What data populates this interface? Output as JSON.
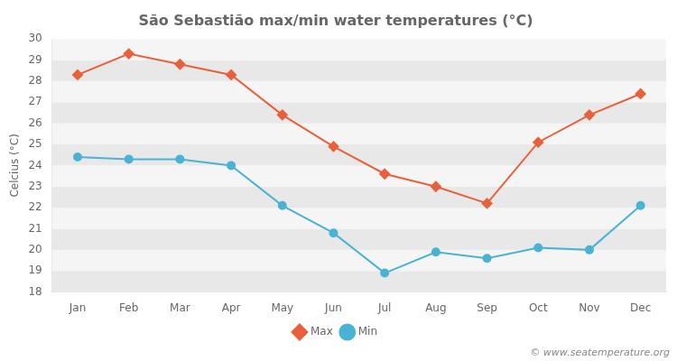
{
  "chart_data": {
    "type": "line",
    "title": "São Sebastião max/min water temperatures (°C)",
    "y_label": "Celcius (°C)",
    "categories": [
      "Jan",
      "Feb",
      "Mar",
      "Apr",
      "May",
      "Jun",
      "Jul",
      "Aug",
      "Sep",
      "Oct",
      "Nov",
      "Dec"
    ],
    "series": [
      {
        "name": "Max",
        "color": "#e8603c",
        "marker": "diamond",
        "values": [
          28.3,
          29.3,
          28.8,
          28.3,
          26.4,
          24.9,
          23.6,
          23.0,
          22.2,
          25.1,
          26.4,
          27.4
        ]
      },
      {
        "name": "Min",
        "color": "#4ab3d4",
        "marker": "circle",
        "values": [
          24.4,
          24.3,
          24.3,
          24.0,
          22.1,
          20.8,
          18.9,
          19.9,
          19.6,
          20.1,
          20.0,
          22.1
        ]
      }
    ],
    "ylim": [
      18,
      30
    ],
    "yticks": [
      18,
      19,
      20,
      21,
      22,
      23,
      24,
      25,
      26,
      27,
      28,
      29,
      30
    ],
    "grid": false,
    "legend": "bottom",
    "annotations": [
      "© www.seatemperature.org"
    ]
  }
}
